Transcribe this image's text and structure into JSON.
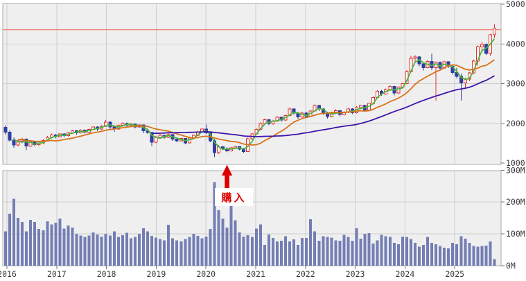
{
  "chart_data": {
    "type": "candlestick+volume",
    "interval": "monthly",
    "start_month": "2016-01",
    "end_month": "2025-10",
    "price_axis": {
      "labels": [
        "5000",
        "4000",
        "3000",
        "2000",
        "1000"
      ],
      "values": [
        5000,
        4000,
        3000,
        2000,
        1000
      ],
      "range": [
        1000,
        5000
      ],
      "side": "right"
    },
    "volume_axis": {
      "labels": [
        "300M",
        "200M",
        "100M",
        "0M"
      ],
      "values": [
        300,
        200,
        100,
        0
      ],
      "range": [
        0,
        300
      ],
      "side": "right"
    },
    "x_axis": {
      "year_labels": [
        "2016",
        "2017",
        "2018",
        "2019",
        "2020",
        "2021",
        "2022",
        "2023",
        "2024",
        "2025"
      ]
    },
    "grid": true,
    "reference_line": {
      "value": 4360,
      "color": "#f2867c"
    },
    "annotation": {
      "label": "購入",
      "month_index": 53,
      "color": "#dd0000"
    },
    "moving_averages": [
      {
        "label": "short-term-ma",
        "window": 3,
        "start_index": 2,
        "color": "#4db53e"
      },
      {
        "label": "mid-term-ma",
        "window": 12,
        "start_index": 3,
        "color": "#d9731c"
      },
      {
        "label": "long-term-ma",
        "window": 36,
        "start_index": 35,
        "color": "#3f15aa"
      }
    ],
    "colors": {
      "up": "#e03232",
      "up_fill": "#ffffff",
      "down": "#2f3f9e",
      "volume": "#737eb5",
      "pane_bg": "#efefef",
      "grid": "#cdcdcd",
      "pane_border": "#ababab",
      "tick": "#777777",
      "text": "#3a3a3a"
    },
    "candles_ohlc": [
      [
        1900,
        1950,
        1720,
        1780
      ],
      [
        1780,
        1820,
        1540,
        1580
      ],
      [
        1580,
        1650,
        1380,
        1450
      ],
      [
        1450,
        1600,
        1420,
        1560
      ],
      [
        1560,
        1640,
        1500,
        1600
      ],
      [
        1600,
        1620,
        1320,
        1430
      ],
      [
        1430,
        1560,
        1400,
        1530
      ],
      [
        1530,
        1560,
        1420,
        1460
      ],
      [
        1460,
        1540,
        1430,
        1510
      ],
      [
        1510,
        1600,
        1480,
        1570
      ],
      [
        1570,
        1680,
        1540,
        1650
      ],
      [
        1650,
        1740,
        1620,
        1710
      ],
      [
        1710,
        1730,
        1620,
        1660
      ],
      [
        1660,
        1750,
        1640,
        1730
      ],
      [
        1730,
        1750,
        1650,
        1690
      ],
      [
        1690,
        1780,
        1660,
        1760
      ],
      [
        1760,
        1830,
        1730,
        1810
      ],
      [
        1810,
        1830,
        1720,
        1760
      ],
      [
        1760,
        1850,
        1740,
        1830
      ],
      [
        1830,
        1850,
        1740,
        1780
      ],
      [
        1780,
        1870,
        1760,
        1850
      ],
      [
        1850,
        1930,
        1830,
        1910
      ],
      [
        1910,
        1930,
        1810,
        1860
      ],
      [
        1860,
        1950,
        1840,
        1930
      ],
      [
        1930,
        2080,
        1910,
        2030
      ],
      [
        2030,
        2060,
        1850,
        1910
      ],
      [
        1910,
        1950,
        1790,
        1860
      ],
      [
        1860,
        1970,
        1840,
        1950
      ],
      [
        1950,
        2030,
        1920,
        2000
      ],
      [
        2000,
        2020,
        1900,
        1950
      ],
      [
        1950,
        2010,
        1910,
        1980
      ],
      [
        1980,
        2000,
        1870,
        1910
      ],
      [
        1910,
        1980,
        1890,
        1960
      ],
      [
        1960,
        1970,
        1750,
        1810
      ],
      [
        1810,
        1860,
        1730,
        1770
      ],
      [
        1770,
        1790,
        1430,
        1520
      ],
      [
        1520,
        1680,
        1500,
        1650
      ],
      [
        1650,
        1730,
        1620,
        1700
      ],
      [
        1700,
        1720,
        1610,
        1650
      ],
      [
        1650,
        1740,
        1630,
        1720
      ],
      [
        1720,
        1730,
        1560,
        1600
      ],
      [
        1600,
        1640,
        1520,
        1560
      ],
      [
        1560,
        1640,
        1540,
        1620
      ],
      [
        1620,
        1630,
        1470,
        1510
      ],
      [
        1510,
        1650,
        1500,
        1630
      ],
      [
        1630,
        1720,
        1600,
        1700
      ],
      [
        1700,
        1810,
        1680,
        1790
      ],
      [
        1790,
        1880,
        1770,
        1860
      ],
      [
        1860,
        1970,
        1730,
        1760
      ],
      [
        1760,
        1790,
        1520,
        1560
      ],
      [
        1560,
        1600,
        1150,
        1260
      ],
      [
        1260,
        1450,
        1230,
        1410
      ],
      [
        1410,
        1430,
        1320,
        1360
      ],
      [
        1360,
        1400,
        1270,
        1310
      ],
      [
        1310,
        1400,
        1290,
        1380
      ],
      [
        1380,
        1440,
        1350,
        1420
      ],
      [
        1420,
        1430,
        1320,
        1350
      ],
      [
        1350,
        1380,
        1250,
        1290
      ],
      [
        1290,
        1640,
        1280,
        1610
      ],
      [
        1610,
        1760,
        1590,
        1730
      ],
      [
        1730,
        1870,
        1710,
        1850
      ],
      [
        1850,
        2030,
        1830,
        2000
      ],
      [
        2000,
        2120,
        1980,
        2090
      ],
      [
        2090,
        2110,
        1950,
        2000
      ],
      [
        2000,
        2090,
        1960,
        2060
      ],
      [
        2060,
        2180,
        2040,
        2150
      ],
      [
        2150,
        2170,
        2040,
        2080
      ],
      [
        2080,
        2230,
        2060,
        2200
      ],
      [
        2200,
        2400,
        2180,
        2360
      ],
      [
        2360,
        2380,
        2210,
        2260
      ],
      [
        2260,
        2290,
        2110,
        2160
      ],
      [
        2160,
        2290,
        2140,
        2260
      ],
      [
        2260,
        2290,
        2140,
        2180
      ],
      [
        2180,
        2340,
        2160,
        2310
      ],
      [
        2310,
        2480,
        2290,
        2450
      ],
      [
        2450,
        2470,
        2310,
        2360
      ],
      [
        2360,
        2380,
        2210,
        2260
      ],
      [
        2260,
        2290,
        2120,
        2170
      ],
      [
        2170,
        2290,
        2150,
        2260
      ],
      [
        2260,
        2350,
        2240,
        2320
      ],
      [
        2320,
        2340,
        2180,
        2220
      ],
      [
        2220,
        2300,
        2200,
        2280
      ],
      [
        2280,
        2390,
        2260,
        2360
      ],
      [
        2360,
        2380,
        2230,
        2270
      ],
      [
        2270,
        2430,
        2250,
        2400
      ],
      [
        2400,
        2470,
        2360,
        2450
      ],
      [
        2450,
        2470,
        2290,
        2340
      ],
      [
        2340,
        2520,
        2320,
        2500
      ],
      [
        2500,
        2680,
        2480,
        2650
      ],
      [
        2650,
        2840,
        2630,
        2810
      ],
      [
        2810,
        2840,
        2690,
        2740
      ],
      [
        2740,
        2880,
        2720,
        2850
      ],
      [
        2850,
        2960,
        2830,
        2930
      ],
      [
        2930,
        2950,
        2700,
        2760
      ],
      [
        2760,
        2940,
        2740,
        2910
      ],
      [
        2910,
        3020,
        2890,
        3000
      ],
      [
        3000,
        3340,
        2980,
        3300
      ],
      [
        3300,
        3700,
        3280,
        3640
      ],
      [
        3640,
        3720,
        3550,
        3670
      ],
      [
        3670,
        3690,
        3440,
        3500
      ],
      [
        3500,
        3520,
        3330,
        3400
      ],
      [
        3400,
        3600,
        3380,
        3560
      ],
      [
        3560,
        3750,
        3340,
        3400
      ],
      [
        3400,
        3560,
        2570,
        3530
      ],
      [
        3530,
        3560,
        3330,
        3390
      ],
      [
        3390,
        3580,
        3370,
        3550
      ],
      [
        3550,
        3570,
        3390,
        3440
      ],
      [
        3440,
        3470,
        3230,
        3280
      ],
      [
        3280,
        3400,
        3130,
        3180
      ],
      [
        3180,
        3250,
        2570,
        3020
      ],
      [
        3020,
        3150,
        2870,
        3110
      ],
      [
        3110,
        3300,
        3060,
        3270
      ],
      [
        3270,
        3600,
        3240,
        3570
      ],
      [
        3570,
        3960,
        3450,
        3930
      ],
      [
        3930,
        4060,
        3840,
        3990
      ],
      [
        3990,
        4010,
        3720,
        3760
      ],
      [
        3760,
        4260,
        3700,
        4230
      ],
      [
        4230,
        4490,
        4140,
        4400
      ]
    ],
    "volumes_millions": [
      108,
      163,
      210,
      150,
      137,
      108,
      144,
      137,
      115,
      111,
      139,
      130,
      135,
      148,
      117,
      126,
      120,
      100,
      95,
      90,
      95,
      105,
      98,
      92,
      100,
      95,
      108,
      90,
      96,
      104,
      86,
      90,
      100,
      118,
      108,
      94,
      88,
      84,
      80,
      128,
      86,
      80,
      76,
      84,
      90,
      100,
      94,
      86,
      92,
      115,
      263,
      174,
      148,
      120,
      191,
      143,
      105,
      92,
      96,
      90,
      117,
      130,
      65,
      98,
      87,
      76,
      78,
      93,
      76,
      83,
      65,
      87,
      87,
      146,
      108,
      78,
      93,
      90,
      88,
      80,
      78,
      97,
      90,
      78,
      118,
      85,
      100,
      102,
      70,
      80,
      97,
      93,
      90,
      72,
      68,
      92,
      90,
      84,
      72,
      60,
      65,
      90,
      72,
      68,
      62,
      57,
      55,
      72,
      68,
      93,
      85,
      72,
      62,
      60,
      62,
      63,
      76,
      21
    ]
  }
}
